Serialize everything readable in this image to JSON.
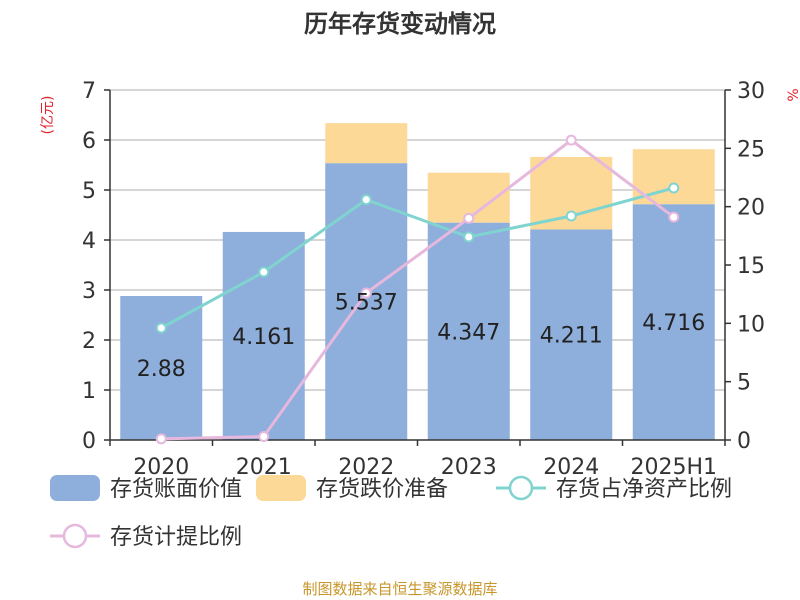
{
  "chart_data": {
    "type": "bar",
    "title": "历年存货变动情况",
    "categories": [
      "2020",
      "2021",
      "2022",
      "2023",
      "2024",
      "2025H1"
    ],
    "left_axis": {
      "unit_label": "(亿元)",
      "ylim": [
        0,
        7
      ],
      "ticks": [
        "0",
        "1",
        "2",
        "3",
        "4",
        "5",
        "6",
        "7"
      ]
    },
    "right_axis": {
      "unit_label": "%",
      "ylim": [
        0,
        30
      ],
      "ticks": [
        "0",
        "5",
        "10",
        "15",
        "20",
        "25",
        "30"
      ]
    },
    "series": [
      {
        "name": "存货账面价值",
        "kind": "bar",
        "stack": "s",
        "axis": "left",
        "color": "#8eaedb",
        "values": [
          2.88,
          4.161,
          5.537,
          4.347,
          4.211,
          4.716
        ],
        "labels": [
          "2.88",
          "4.161",
          "5.537",
          "4.347",
          "4.211",
          "4.716"
        ]
      },
      {
        "name": "存货跌价准备",
        "kind": "bar",
        "stack": "s",
        "axis": "left",
        "color": "#fdd998",
        "values": [
          0.0,
          0.0,
          0.8,
          1.0,
          1.45,
          1.1
        ]
      },
      {
        "name": "存货占净资产比例",
        "kind": "line",
        "axis": "right",
        "color": "#80d4d0",
        "values": [
          9.6,
          14.4,
          20.6,
          17.4,
          19.2,
          21.6
        ]
      },
      {
        "name": "存货计提比例",
        "kind": "line",
        "axis": "right",
        "color": "#e6b8de",
        "values": [
          0.1,
          0.3,
          12.6,
          19.0,
          25.7,
          19.1
        ]
      }
    ],
    "grid": true,
    "legend_position": "bottom"
  },
  "source_text": "制图数据来自恒生聚源数据库"
}
